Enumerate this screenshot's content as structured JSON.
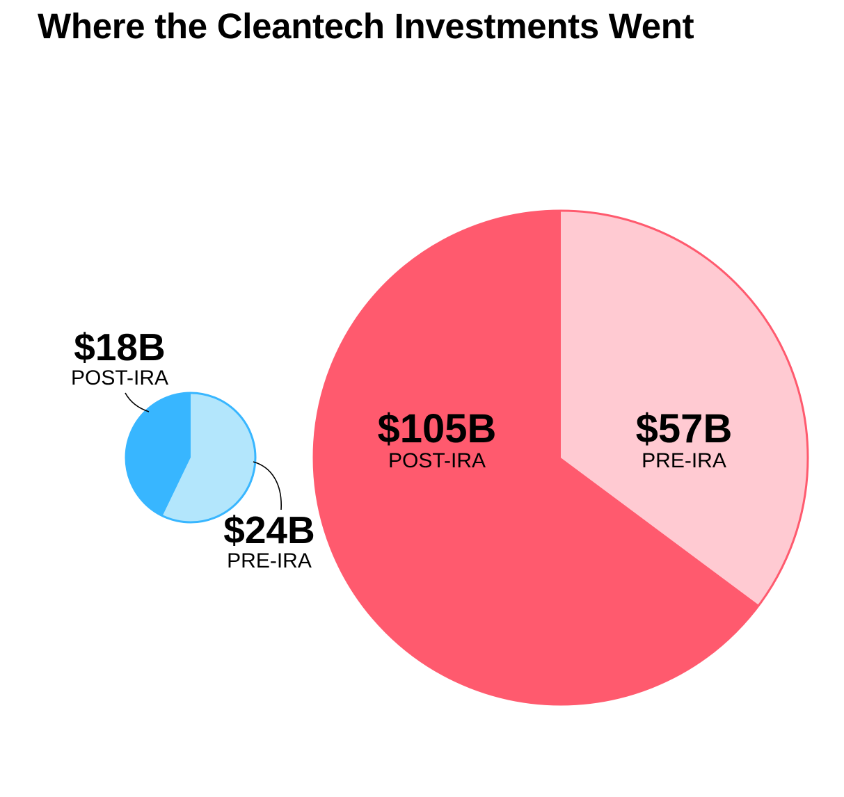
{
  "chart_data": [
    {
      "type": "pie",
      "title": "Where the Cleantech Investments Went",
      "unit": "$B",
      "colors": {
        "post": "#38B6FF",
        "pre": "#B3E6FC",
        "outline": "#38B6FF"
      },
      "slices": [
        {
          "label": "POST-IRA",
          "value": 18,
          "display": "$18B"
        },
        {
          "label": "PRE-IRA",
          "value": 24,
          "display": "$24B"
        }
      ]
    },
    {
      "type": "pie",
      "unit": "$B",
      "colors": {
        "post": "#FF5A6E",
        "pre": "#FFCAD2",
        "outline": "#FF5A6E"
      },
      "slices": [
        {
          "label": "POST-IRA",
          "value": 105,
          "display": "$105B"
        },
        {
          "label": "PRE-IRA",
          "value": 57,
          "display": "$57B"
        }
      ]
    }
  ]
}
